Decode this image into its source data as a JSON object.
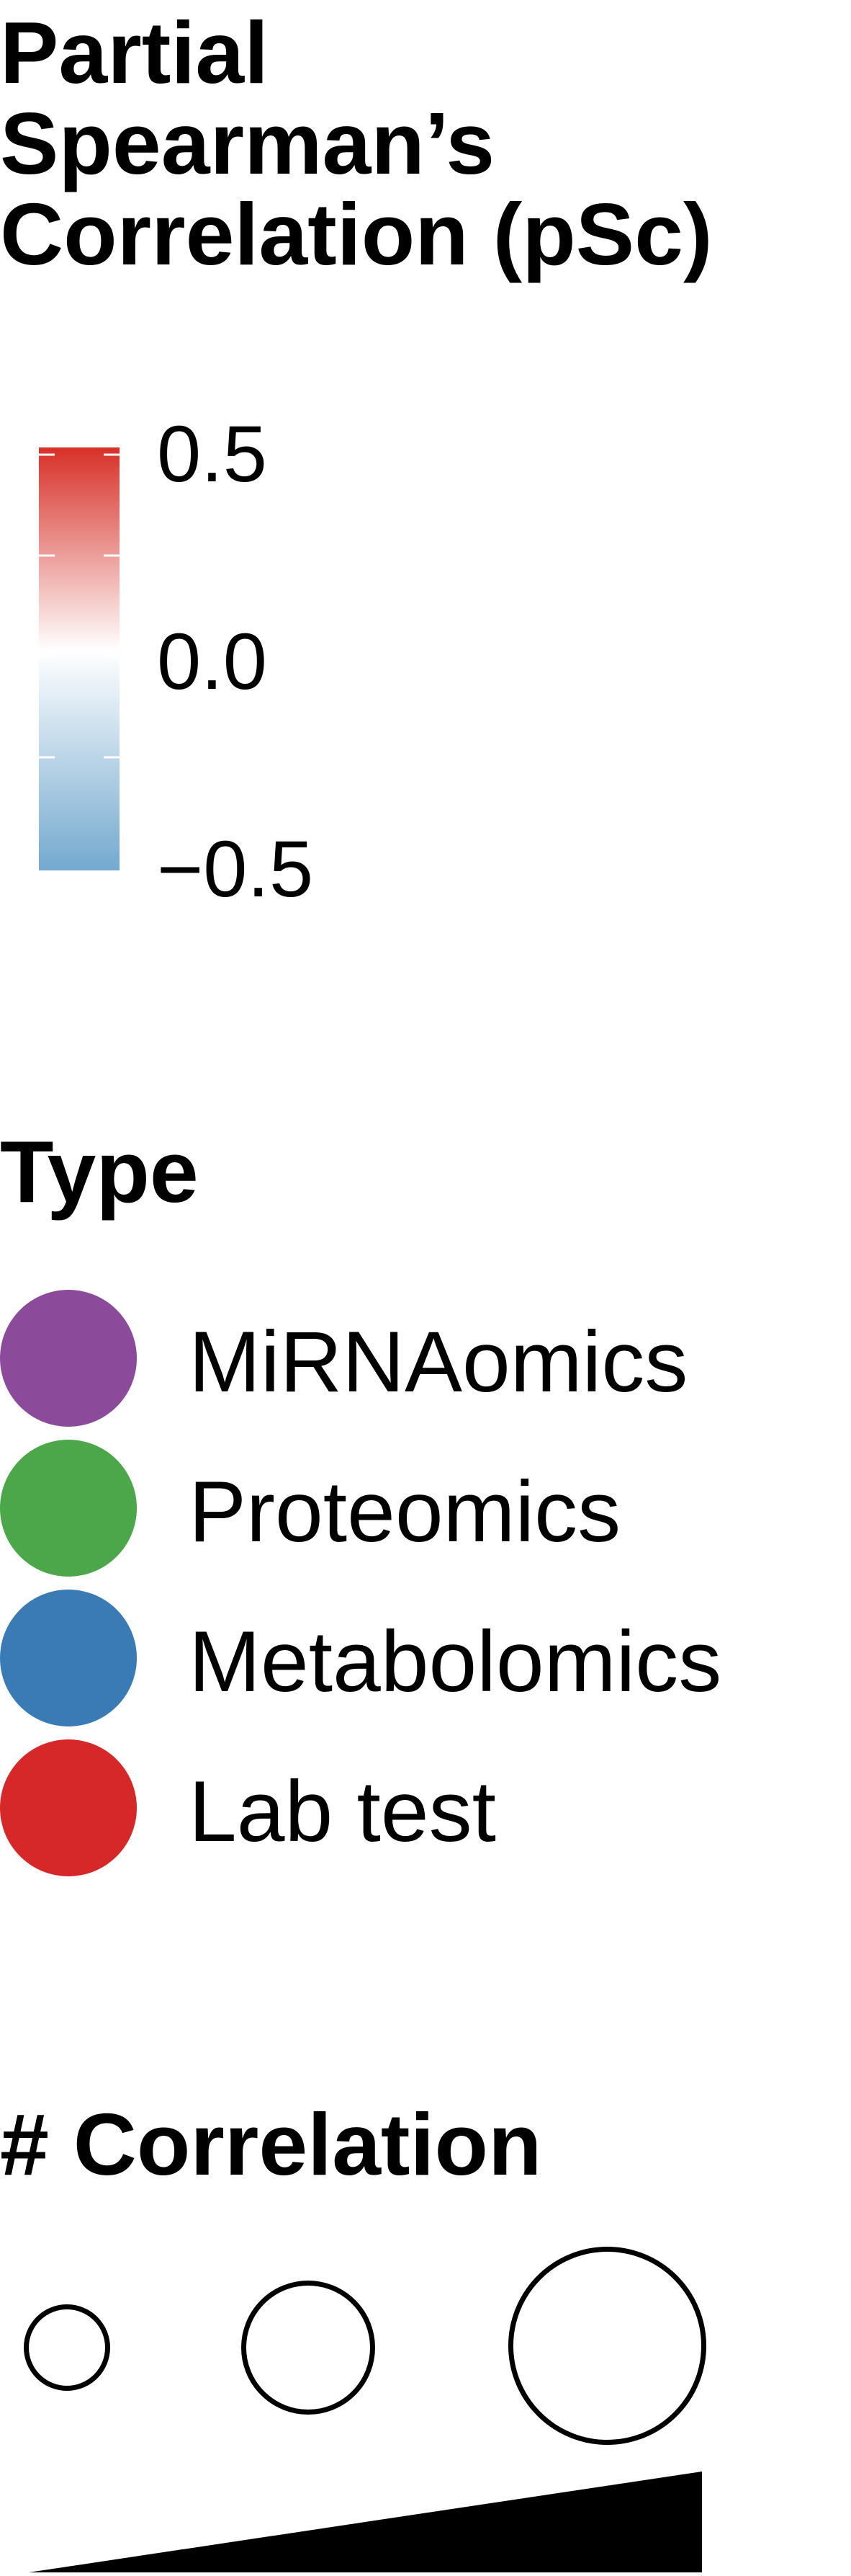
{
  "color_legend": {
    "title_lines": [
      "Partial",
      "Spearman’s",
      "Correlation (pSc)"
    ],
    "ticks": [
      "0.5",
      "0.0",
      "−0.5"
    ],
    "gradient": {
      "high": "#d73027",
      "mid": "#ffffff",
      "low": "#74a9cf"
    }
  },
  "type_legend": {
    "title": "Type",
    "items": [
      {
        "label": "MiRNAomics",
        "color": "#8c4b9a"
      },
      {
        "label": "Proteomics",
        "color": "#4ca64a"
      },
      {
        "label": "Metabolomics",
        "color": "#3a7ab5"
      },
      {
        "label": "Lab test",
        "color": "#d62828"
      }
    ]
  },
  "size_legend": {
    "title": "# Correlation",
    "sizes": [
      "small",
      "medium",
      "large"
    ]
  },
  "chart_data": {
    "type": "legend",
    "color_scale": {
      "min": -0.5,
      "max": 0.5,
      "ticks": [
        0.5,
        0.0,
        -0.5
      ]
    },
    "categories": [
      "MiRNAomics",
      "Proteomics",
      "Metabolomics",
      "Lab test"
    ]
  }
}
